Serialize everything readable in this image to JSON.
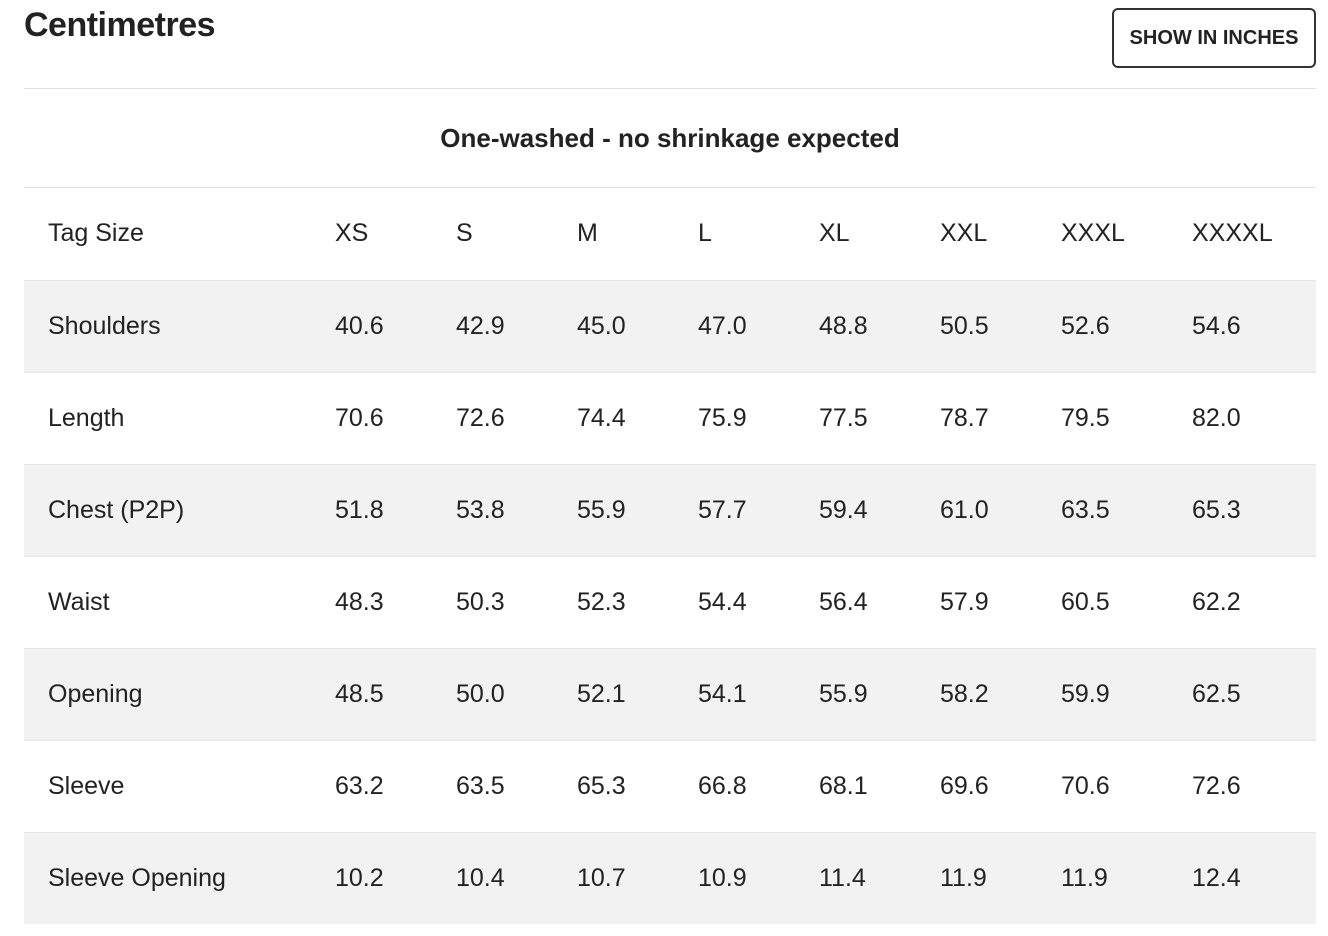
{
  "title": "Centimetres",
  "toggle_label": "SHOW IN INCHES",
  "caption": "One-washed - no shrinkage expected",
  "header": {
    "label": "Tag Size",
    "sizes": [
      "XS",
      "S",
      "M",
      "L",
      "XL",
      "XXL",
      "XXXL",
      "XXXXL"
    ]
  },
  "rows": [
    {
      "label": "Shoulders",
      "values": [
        "40.6",
        "42.9",
        "45.0",
        "47.0",
        "48.8",
        "50.5",
        "52.6",
        "54.6"
      ]
    },
    {
      "label": "Length",
      "values": [
        "70.6",
        "72.6",
        "74.4",
        "75.9",
        "77.5",
        "78.7",
        "79.5",
        "82.0"
      ]
    },
    {
      "label": "Chest (P2P)",
      "values": [
        "51.8",
        "53.8",
        "55.9",
        "57.7",
        "59.4",
        "61.0",
        "63.5",
        "65.3"
      ]
    },
    {
      "label": "Waist",
      "values": [
        "48.3",
        "50.3",
        "52.3",
        "54.4",
        "56.4",
        "57.9",
        "60.5",
        "62.2"
      ]
    },
    {
      "label": "Opening",
      "values": [
        "48.5",
        "50.0",
        "52.1",
        "54.1",
        "55.9",
        "58.2",
        "59.9",
        "62.5"
      ]
    },
    {
      "label": "Sleeve",
      "values": [
        "63.2",
        "63.5",
        "65.3",
        "66.8",
        "68.1",
        "69.6",
        "70.6",
        "72.6"
      ]
    },
    {
      "label": "Sleeve Opening",
      "values": [
        "10.2",
        "10.4",
        "10.7",
        "10.9",
        "11.4",
        "11.9",
        "11.9",
        "12.4"
      ]
    }
  ]
}
